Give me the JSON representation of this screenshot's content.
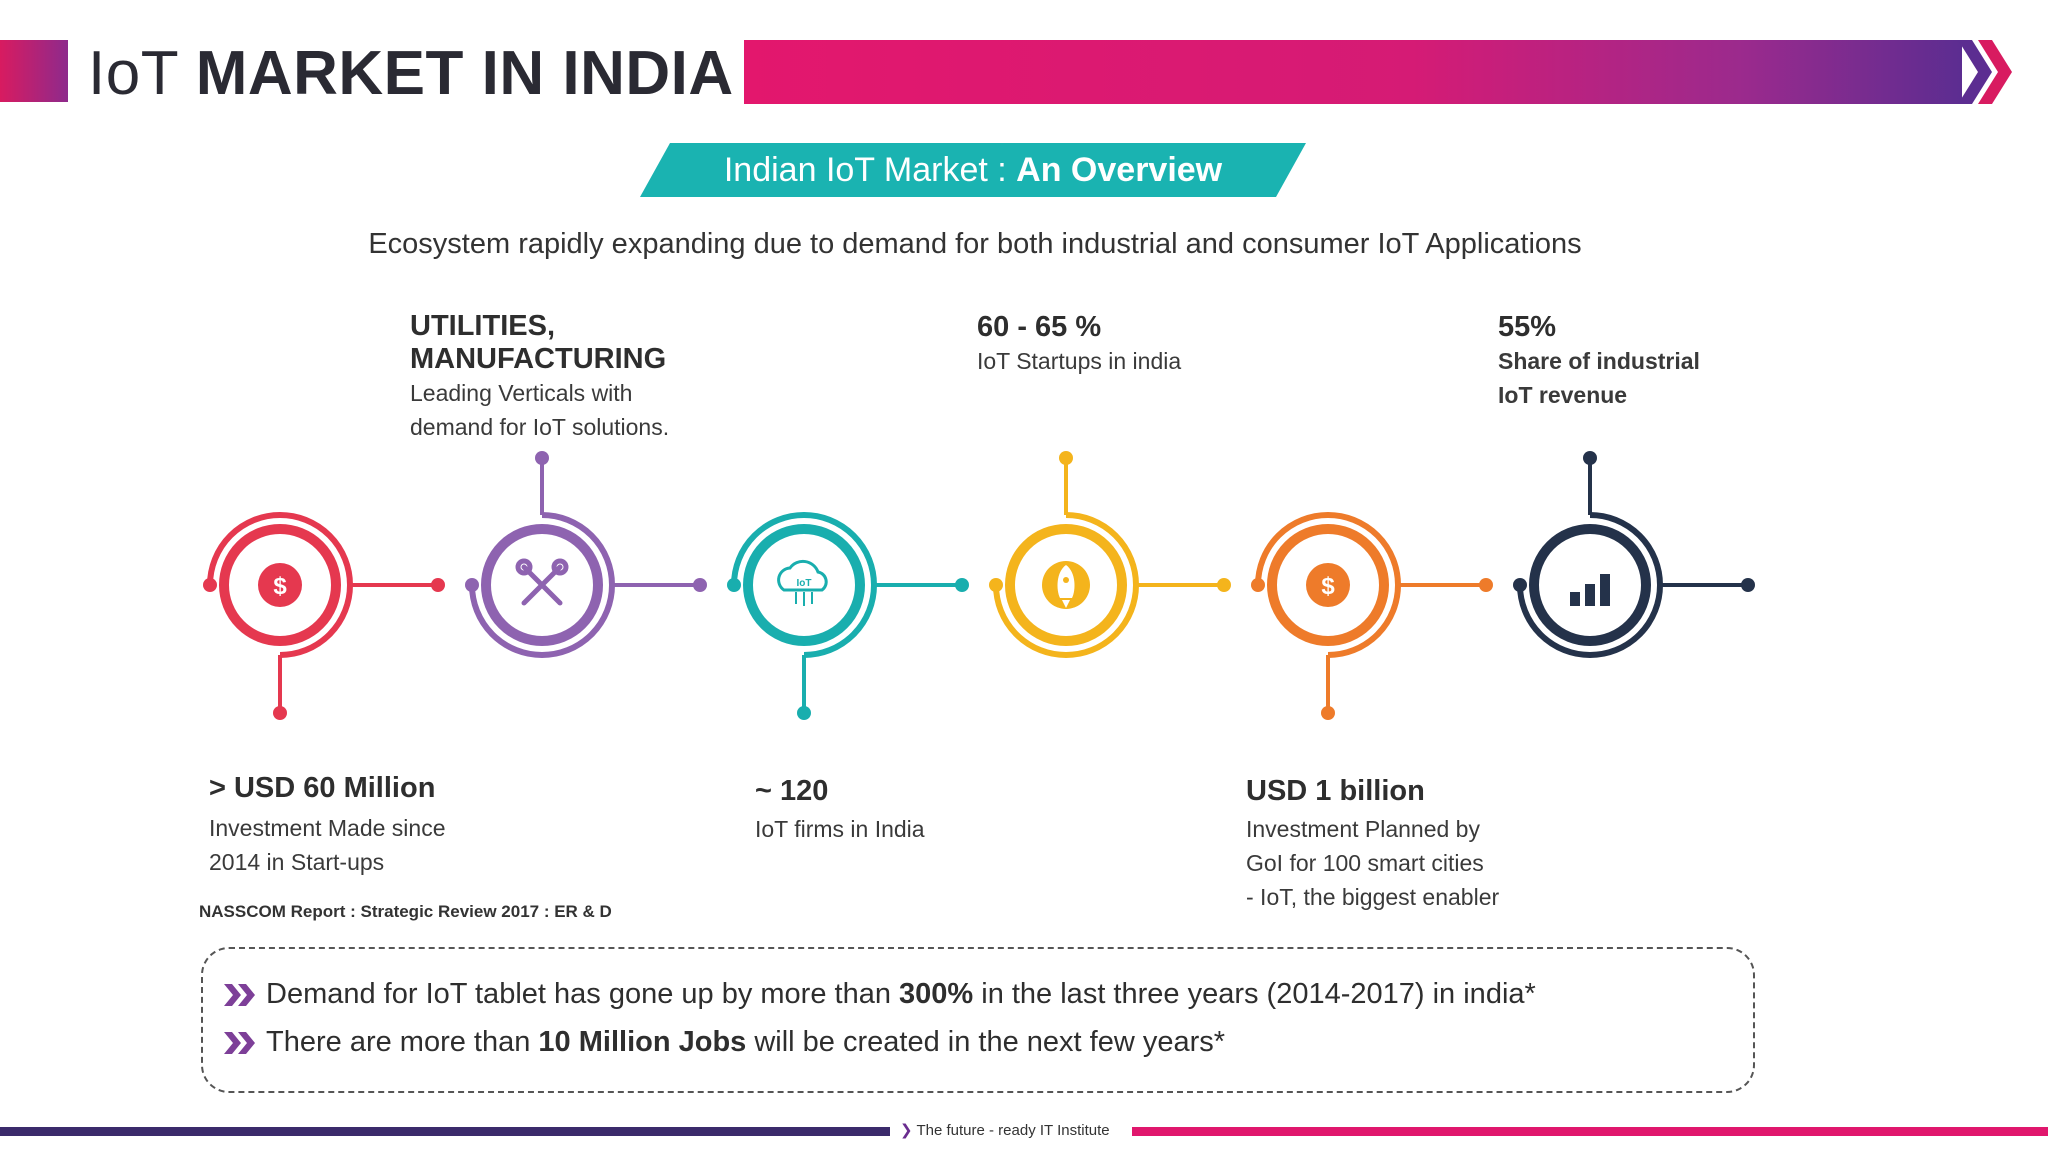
{
  "header": {
    "title_light": "IoT",
    "title_bold": "MARKET IN INDIA"
  },
  "overview": {
    "banner_prefix": "Indian IoT Market : ",
    "banner_bold": "An Overview",
    "subtitle": "Ecosystem rapidly expanding due to demand for both industrial and consumer IoT Applications"
  },
  "stats": {
    "investment": {
      "title": "> USD 60 Million",
      "desc1": "Investment Made since",
      "desc2": "2014 in Start-ups"
    },
    "verticals": {
      "title1": "UTILITIES,",
      "title2": "MANUFACTURING",
      "desc1": "Leading Verticals with",
      "desc2": "demand for IoT solutions."
    },
    "firms": {
      "title": "~ 120",
      "desc1": "IoT firms in India"
    },
    "startups": {
      "title": "60 - 65 %",
      "desc1": "IoT Startups in india"
    },
    "smart_cities": {
      "title": "USD 1 billion",
      "desc1": "Investment Planned by",
      "desc2": "GoI for 100 smart cities",
      "desc3": "- IoT, the biggest enabler"
    },
    "industrial": {
      "title": "55%",
      "desc1": "Share of industrial",
      "desc2": "IoT revenue"
    }
  },
  "icons": {
    "c1": "dollar-coin-icon",
    "c2": "tools-icon",
    "c3": "iot-cloud-icon",
    "c4": "rocket-icon",
    "c5": "dollar-coin-icon",
    "c6": "bar-chart-icon",
    "c3_label": "IoT"
  },
  "colors": {
    "red": "#e5384f",
    "purple": "#8e63b0",
    "teal": "#19aeae",
    "yellow": "#f4b41c",
    "orange": "#ee7b2a",
    "navy": "#24324a",
    "magenta": "#e0176d"
  },
  "source": "NASSCOM Report : Strategic Review 2017 : ER & D",
  "highlights": {
    "line1_pre": "Demand for IoT tablet has gone up by more than ",
    "line1_bold": "300%",
    "line1_post": " in the last three years (2014-2017) in india*",
    "line2_pre": "There are more than ",
    "line2_bold": "10 Million Jobs",
    "line2_post": " will be created in the next few years*"
  },
  "footer": {
    "tagline": "The future - ready IT Institute"
  }
}
